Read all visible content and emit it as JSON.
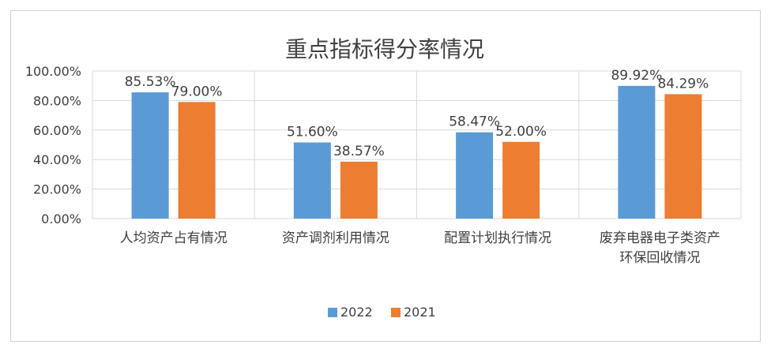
{
  "chart_data": {
    "type": "bar",
    "title": "重点指标得分率情况",
    "categories": [
      "人均资产占有情况",
      "资产调剂利用情况",
      "配置计划执行情况",
      "废弃电器电子类资产环保回收情况"
    ],
    "category_lines": [
      [
        "人均资产占有情况"
      ],
      [
        "资产调剂利用情况"
      ],
      [
        "配置计划执行情况"
      ],
      [
        "废弃电器电子类资产",
        "环保回收情况"
      ]
    ],
    "series": [
      {
        "name": "2022",
        "values": [
          85.53,
          51.6,
          58.47,
          89.92
        ],
        "labels": [
          "85.53%",
          "51.60%",
          "58.47%",
          "89.92%"
        ],
        "color": "#5b9bd5"
      },
      {
        "name": "2021",
        "values": [
          79.0,
          38.57,
          52.0,
          84.29
        ],
        "labels": [
          "79.00%",
          "38.57%",
          "52.00%",
          "84.29%"
        ],
        "color": "#ed7d31"
      }
    ],
    "ylim": [
      0,
      100
    ],
    "yticks": [
      0,
      20,
      40,
      60,
      80,
      100
    ],
    "ytick_labels": [
      "0.00%",
      "20.00%",
      "40.00%",
      "60.00%",
      "80.00%",
      "100.00%"
    ],
    "xlabel": "",
    "ylabel": "",
    "grid": true,
    "legend_position": "bottom",
    "gridline_color": "#d9d9d9"
  }
}
